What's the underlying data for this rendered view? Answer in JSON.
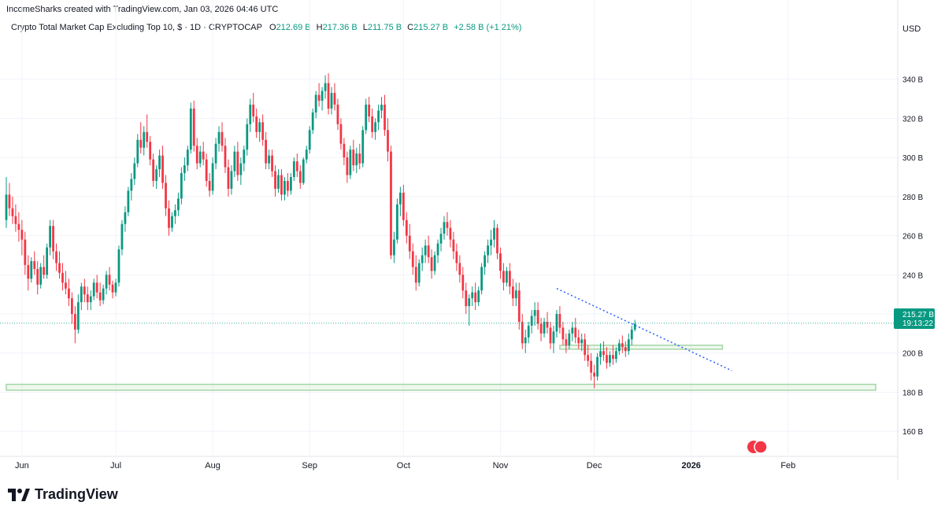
{
  "caption": "IncomeSharks created with TradingView.com, Jan 03, 2026 04:46 UTC",
  "legend": {
    "symbol": "Crypto Total Market Cap Excluding Top 10, $ · 1D · CRYPTOCAP",
    "open_label": "O",
    "open_value": "212.69 B",
    "high_label": "H",
    "high_value": "217.36 B",
    "low_label": "L",
    "low_value": "211.75 B",
    "close_label": "C",
    "close_value": "215.27 B",
    "change_value": "+2.58 B (+1.21%)"
  },
  "currency": "USD",
  "price_tag": {
    "price": "215.27 B",
    "countdown": "19:13:22"
  },
  "brand": "TradingView",
  "colors": {
    "up": "#089981",
    "down": "#f23645",
    "trendline": "#2962ff",
    "support": "#a5d6a7",
    "tag": "#089981"
  },
  "chart_data": {
    "type": "candlestick",
    "y_unit": "B USD",
    "ylim": [
      148,
      362
    ],
    "y_ticks": [
      160,
      180,
      200,
      220,
      240,
      260,
      280,
      300,
      320,
      340
    ],
    "y_tick_labels": [
      "160 B",
      "180 B",
      "200 B",
      "220 B",
      "240 B",
      "260 B",
      "280 B",
      "300 B",
      "320 B",
      "340 B"
    ],
    "x_range": [
      "2025-05-27",
      "2026-03-01"
    ],
    "x_ticks": [
      {
        "date": "2025-06-01",
        "label": "Jun"
      },
      {
        "date": "2025-07-01",
        "label": "Jul"
      },
      {
        "date": "2025-08-01",
        "label": "Aug"
      },
      {
        "date": "2025-09-01",
        "label": "Sep"
      },
      {
        "date": "2025-10-01",
        "label": "Oct"
      },
      {
        "date": "2025-11-01",
        "label": "Nov"
      },
      {
        "date": "2025-12-01",
        "label": "Dec"
      },
      {
        "date": "2026-01-01",
        "label": "2026"
      },
      {
        "date": "2026-02-01",
        "label": "Feb"
      }
    ],
    "candles_start": "2025-05-27",
    "candles": [
      [
        268,
        290,
        264,
        281
      ],
      [
        281,
        287,
        270,
        274
      ],
      [
        274,
        280,
        266,
        270
      ],
      [
        270,
        276,
        262,
        266
      ],
      [
        266,
        272,
        257,
        263
      ],
      [
        263,
        268,
        250,
        258
      ],
      [
        258,
        262,
        240,
        245
      ],
      [
        245,
        250,
        232,
        238
      ],
      [
        238,
        249,
        236,
        247
      ],
      [
        247,
        252,
        240,
        243
      ],
      [
        243,
        247,
        230,
        235
      ],
      [
        235,
        246,
        233,
        244
      ],
      [
        244,
        250,
        238,
        240
      ],
      [
        240,
        256,
        238,
        254
      ],
      [
        254,
        268,
        250,
        265
      ],
      [
        265,
        268,
        248,
        252
      ],
      [
        252,
        256,
        242,
        246
      ],
      [
        246,
        252,
        238,
        241
      ],
      [
        241,
        246,
        232,
        236
      ],
      [
        236,
        242,
        230,
        233
      ],
      [
        233,
        238,
        224,
        228
      ],
      [
        228,
        231,
        215,
        220
      ],
      [
        220,
        224,
        205,
        212
      ],
      [
        212,
        230,
        210,
        226
      ],
      [
        226,
        236,
        222,
        234
      ],
      [
        234,
        238,
        226,
        230
      ],
      [
        230,
        234,
        222,
        226
      ],
      [
        226,
        232,
        222,
        229
      ],
      [
        229,
        238,
        227,
        236
      ],
      [
        236,
        240,
        228,
        231
      ],
      [
        231,
        236,
        224,
        227
      ],
      [
        227,
        235,
        225,
        233
      ],
      [
        233,
        242,
        230,
        240
      ],
      [
        240,
        244,
        232,
        235
      ],
      [
        235,
        237,
        228,
        231
      ],
      [
        231,
        238,
        229,
        236
      ],
      [
        236,
        255,
        234,
        253
      ],
      [
        253,
        268,
        250,
        266
      ],
      [
        266,
        275,
        262,
        272
      ],
      [
        272,
        285,
        270,
        283
      ],
      [
        283,
        292,
        278,
        289
      ],
      [
        289,
        300,
        286,
        297
      ],
      [
        297,
        312,
        295,
        309
      ],
      [
        309,
        318,
        302,
        305
      ],
      [
        305,
        316,
        301,
        313
      ],
      [
        313,
        322,
        305,
        308
      ],
      [
        308,
        311,
        296,
        299
      ],
      [
        299,
        302,
        285,
        288
      ],
      [
        288,
        296,
        284,
        294
      ],
      [
        294,
        304,
        290,
        301
      ],
      [
        301,
        306,
        284,
        287
      ],
      [
        287,
        291,
        270,
        274
      ],
      [
        274,
        278,
        260,
        264
      ],
      [
        264,
        272,
        262,
        270
      ],
      [
        270,
        276,
        266,
        273
      ],
      [
        273,
        282,
        270,
        279
      ],
      [
        279,
        295,
        276,
        292
      ],
      [
        292,
        300,
        288,
        296
      ],
      [
        296,
        306,
        293,
        304
      ],
      [
        304,
        328,
        302,
        325
      ],
      [
        325,
        329,
        303,
        306
      ],
      [
        306,
        310,
        294,
        297
      ],
      [
        297,
        306,
        295,
        303
      ],
      [
        303,
        308,
        296,
        299
      ],
      [
        299,
        302,
        285,
        288
      ],
      [
        288,
        292,
        280,
        283
      ],
      [
        283,
        300,
        281,
        297
      ],
      [
        297,
        310,
        294,
        307
      ],
      [
        307,
        316,
        303,
        313
      ],
      [
        313,
        318,
        303,
        306
      ],
      [
        306,
        310,
        292,
        295
      ],
      [
        295,
        299,
        280,
        284
      ],
      [
        284,
        296,
        281,
        293
      ],
      [
        293,
        306,
        290,
        303
      ],
      [
        303,
        308,
        288,
        291
      ],
      [
        291,
        300,
        286,
        297
      ],
      [
        297,
        306,
        293,
        304
      ],
      [
        304,
        320,
        301,
        317
      ],
      [
        317,
        330,
        313,
        327
      ],
      [
        327,
        333,
        318,
        321
      ],
      [
        321,
        325,
        310,
        313
      ],
      [
        313,
        320,
        308,
        318
      ],
      [
        318,
        322,
        306,
        309
      ],
      [
        309,
        313,
        294,
        297
      ],
      [
        297,
        304,
        294,
        301
      ],
      [
        301,
        304,
        290,
        293
      ],
      [
        293,
        296,
        280,
        284
      ],
      [
        284,
        294,
        282,
        291
      ],
      [
        291,
        294,
        278,
        281
      ],
      [
        281,
        290,
        278,
        288
      ],
      [
        288,
        292,
        280,
        283
      ],
      [
        283,
        292,
        281,
        290
      ],
      [
        290,
        300,
        288,
        298
      ],
      [
        298,
        302,
        290,
        293
      ],
      [
        293,
        296,
        284,
        287
      ],
      [
        287,
        300,
        286,
        299
      ],
      [
        299,
        306,
        297,
        304
      ],
      [
        304,
        316,
        302,
        314
      ],
      [
        314,
        325,
        312,
        323
      ],
      [
        323,
        334,
        320,
        332
      ],
      [
        332,
        338,
        326,
        329
      ],
      [
        329,
        336,
        324,
        334
      ],
      [
        334,
        342,
        330,
        338
      ],
      [
        338,
        343,
        322,
        325
      ],
      [
        325,
        336,
        322,
        333
      ],
      [
        333,
        338,
        324,
        327
      ],
      [
        327,
        330,
        314,
        317
      ],
      [
        317,
        320,
        304,
        307
      ],
      [
        307,
        310,
        296,
        300
      ],
      [
        300,
        303,
        287,
        291
      ],
      [
        291,
        306,
        289,
        304
      ],
      [
        304,
        309,
        293,
        296
      ],
      [
        296,
        305,
        292,
        302
      ],
      [
        302,
        307,
        294,
        297
      ],
      [
        297,
        316,
        295,
        314
      ],
      [
        314,
        330,
        312,
        327
      ],
      [
        327,
        331,
        318,
        321
      ],
      [
        321,
        325,
        310,
        313
      ],
      [
        313,
        320,
        309,
        318
      ],
      [
        318,
        327,
        314,
        324
      ],
      [
        324,
        331,
        320,
        327
      ],
      [
        327,
        332,
        311,
        314
      ],
      [
        314,
        320,
        298,
        303
      ],
      [
        303,
        306,
        248,
        250
      ],
      [
        250,
        262,
        246,
        258
      ],
      [
        258,
        279,
        256,
        276
      ],
      [
        276,
        285,
        270,
        282
      ],
      [
        282,
        286,
        265,
        268
      ],
      [
        268,
        272,
        256,
        260
      ],
      [
        260,
        266,
        248,
        252
      ],
      [
        252,
        256,
        240,
        244
      ],
      [
        244,
        250,
        232,
        236
      ],
      [
        236,
        248,
        234,
        246
      ],
      [
        246,
        254,
        242,
        250
      ],
      [
        250,
        258,
        246,
        255
      ],
      [
        255,
        260,
        246,
        249
      ],
      [
        249,
        253,
        238,
        242
      ],
      [
        242,
        252,
        240,
        250
      ],
      [
        250,
        258,
        246,
        256
      ],
      [
        256,
        264,
        252,
        261
      ],
      [
        261,
        270,
        258,
        267
      ],
      [
        267,
        272,
        260,
        264
      ],
      [
        264,
        268,
        254,
        258
      ],
      [
        258,
        262,
        248,
        252
      ],
      [
        252,
        256,
        242,
        246
      ],
      [
        246,
        250,
        236,
        240
      ],
      [
        240,
        244,
        228,
        232
      ],
      [
        232,
        236,
        220,
        224
      ],
      [
        224,
        230,
        214,
        228
      ],
      [
        228,
        234,
        224,
        231
      ],
      [
        231,
        236,
        222,
        226
      ],
      [
        226,
        234,
        224,
        232
      ],
      [
        232,
        246,
        230,
        244
      ],
      [
        244,
        252,
        240,
        250
      ],
      [
        250,
        258,
        246,
        255
      ],
      [
        255,
        263,
        250,
        258
      ],
      [
        258,
        268,
        254,
        264
      ],
      [
        264,
        266,
        248,
        251
      ],
      [
        251,
        254,
        238,
        242
      ],
      [
        242,
        246,
        232,
        236
      ],
      [
        236,
        244,
        234,
        242
      ],
      [
        242,
        246,
        230,
        234
      ],
      [
        234,
        238,
        224,
        228
      ],
      [
        228,
        236,
        224,
        232
      ],
      [
        232,
        236,
        212,
        216
      ],
      [
        216,
        220,
        202,
        205
      ],
      [
        205,
        212,
        200,
        208
      ],
      [
        208,
        216,
        205,
        214
      ],
      [
        214,
        222,
        210,
        219
      ],
      [
        219,
        226,
        214,
        222
      ],
      [
        222,
        226,
        212,
        215
      ],
      [
        215,
        218,
        206,
        210
      ],
      [
        210,
        218,
        208,
        216
      ],
      [
        216,
        221,
        210,
        213
      ],
      [
        213,
        216,
        202,
        205
      ],
      [
        205,
        214,
        200,
        211
      ],
      [
        211,
        222,
        208,
        220
      ],
      [
        220,
        224,
        210,
        213
      ],
      [
        213,
        216,
        204,
        207
      ],
      [
        207,
        210,
        200,
        204
      ],
      [
        204,
        212,
        202,
        210
      ],
      [
        210,
        216,
        206,
        213
      ],
      [
        213,
        218,
        205,
        208
      ],
      [
        208,
        212,
        202,
        205
      ],
      [
        205,
        210,
        201,
        207
      ],
      [
        207,
        210,
        196,
        199
      ],
      [
        199,
        204,
        193,
        196
      ],
      [
        196,
        200,
        186,
        190
      ],
      [
        190,
        194,
        182,
        188
      ],
      [
        188,
        200,
        186,
        198
      ],
      [
        198,
        205,
        194,
        201
      ],
      [
        201,
        206,
        196,
        199
      ],
      [
        199,
        203,
        192,
        195
      ],
      [
        195,
        201,
        193,
        199
      ],
      [
        199,
        204,
        194,
        197
      ],
      [
        197,
        203,
        195,
        201
      ],
      [
        201,
        207,
        199,
        205
      ],
      [
        205,
        209,
        200,
        203
      ],
      [
        203,
        206,
        198,
        201
      ],
      [
        201,
        210,
        199,
        207
      ],
      [
        207,
        214,
        204,
        212
      ],
      [
        212,
        217,
        211,
        215
      ]
    ],
    "series": [
      {
        "kind": "dotted-trendline",
        "points": [
          [
            "2025-11-19",
            233
          ],
          [
            "2026-01-14",
            191
          ]
        ]
      },
      {
        "kind": "support-zone",
        "x": [
          "2025-11-20",
          "2026-01-11"
        ],
        "y": [
          202,
          204
        ]
      },
      {
        "kind": "support-zone",
        "x": [
          "2025-05-27",
          "2026-03-01"
        ],
        "y": [
          181,
          184
        ]
      },
      {
        "kind": "last-price-line",
        "value": 215.27
      }
    ]
  }
}
